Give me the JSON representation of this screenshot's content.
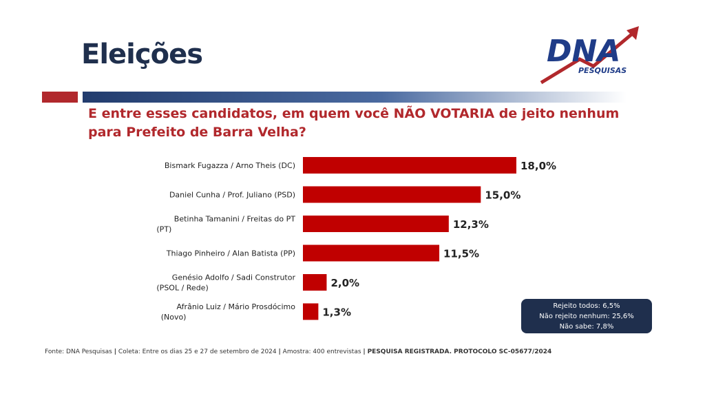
{
  "header": {
    "title": "Eleições",
    "logo_text": "DNA",
    "logo_subtext": "PESQUISAS"
  },
  "question": "E entre esses candidatos, em quem você NÃO VOTARIA de jeito nenhum para Prefeito de Barra Velha?",
  "colors": {
    "bar": "#c00000",
    "title": "#1f2f4d",
    "question": "#b1282c",
    "note_bg": "#1f2f4d"
  },
  "chart_data": {
    "type": "bar",
    "orientation": "horizontal",
    "categories": [
      [
        "Bismark Fugazza / Arno Theis (DC)"
      ],
      [
        "Daniel Cunha / Prof. Juliano (PSD)"
      ],
      [
        "Betinha Tamanini / Freitas do PT",
        "(PT)"
      ],
      [
        "Thiago Pinheiro / Alan Batista (PP)"
      ],
      [
        "Genésio Adolfo / Sadi Construtor",
        "(PSOL / Rede)"
      ],
      [
        "Afrânio Luiz / Mário Prosdócimo",
        "(Novo)"
      ]
    ],
    "values": [
      18.0,
      15.0,
      12.3,
      11.5,
      2.0,
      1.3
    ],
    "labels": [
      "18,0%",
      "15,0%",
      "12,3%",
      "11,5%",
      "2,0%",
      "1,3%"
    ],
    "xlim": [
      0,
      18.0
    ],
    "grid": false,
    "legend": false
  },
  "note": {
    "line1": "Rejeito todos: 6,5%",
    "line2": "Não rejeito nenhum: 25,6%",
    "line3": "Não sabe: 7,8%"
  },
  "footer": {
    "source": "Fonte: DNA Pesquisas",
    "sep": "|",
    "collection": "Coleta: Entre os dias 25 e 27 de setembro de 2024",
    "sample": "Amostra: 400 entrevistas",
    "registration": "PESQUISA REGISTRADA. PROTOCOLO SC-05677/2024"
  }
}
